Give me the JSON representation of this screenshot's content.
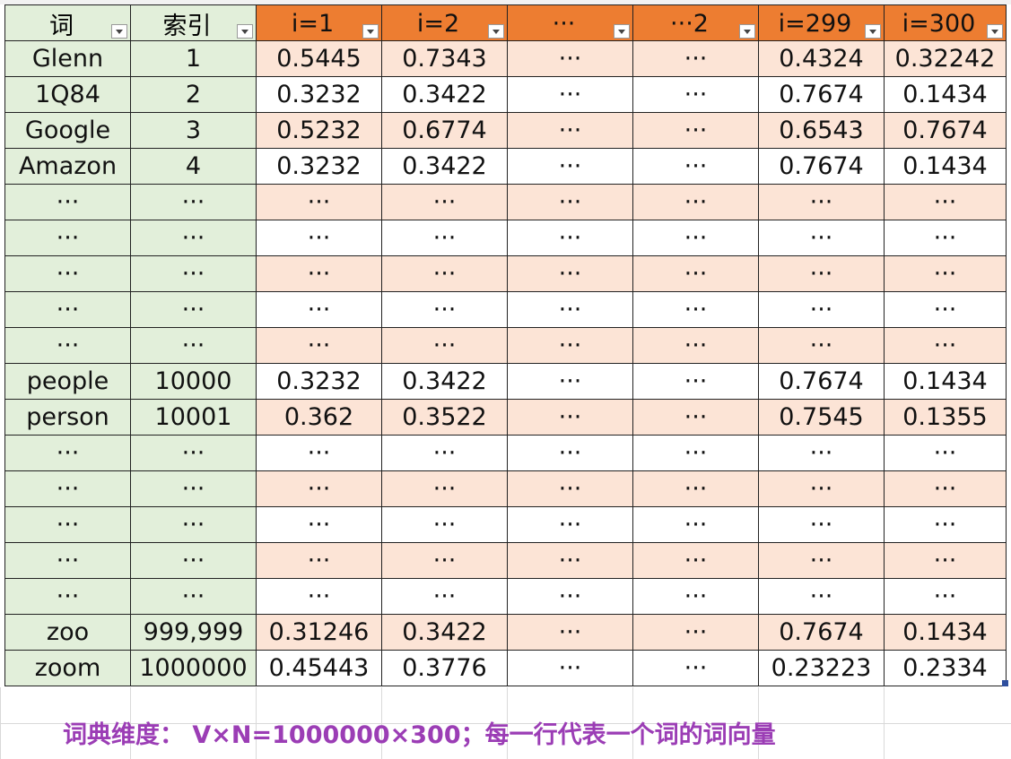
{
  "table": {
    "headers": [
      "词",
      "索引",
      "i=1",
      "i=2",
      "···",
      "···2",
      "i=299",
      "i=300"
    ],
    "rows": [
      [
        "Glenn",
        "1",
        "0.5445",
        "0.7343",
        "···",
        "···",
        "0.4324",
        "0.32242"
      ],
      [
        "1Q84",
        "2",
        "0.3232",
        "0.3422",
        "···",
        "···",
        "0.7674",
        "0.1434"
      ],
      [
        "Google",
        "3",
        "0.5232",
        "0.6774",
        "···",
        "···",
        "0.6543",
        "0.7674"
      ],
      [
        "Amazon",
        "4",
        "0.3232",
        "0.3422",
        "···",
        "···",
        "0.7674",
        "0.1434"
      ],
      [
        "···",
        "···",
        "···",
        "···",
        "···",
        "···",
        "···",
        "···"
      ],
      [
        "···",
        "···",
        "···",
        "···",
        "···",
        "···",
        "···",
        "···"
      ],
      [
        "···",
        "···",
        "···",
        "···",
        "···",
        "···",
        "···",
        "···"
      ],
      [
        "···",
        "···",
        "···",
        "···",
        "···",
        "···",
        "···",
        "···"
      ],
      [
        "···",
        "···",
        "···",
        "···",
        "···",
        "···",
        "···",
        "···"
      ],
      [
        "people",
        "10000",
        "0.3232",
        "0.3422",
        "···",
        "···",
        "0.7674",
        "0.1434"
      ],
      [
        "person",
        "10001",
        "0.362",
        "0.3522",
        "···",
        "···",
        "0.7545",
        "0.1355"
      ],
      [
        "···",
        "···",
        "···",
        "···",
        "···",
        "···",
        "···",
        "···"
      ],
      [
        "···",
        "···",
        "···",
        "···",
        "···",
        "···",
        "···",
        "···"
      ],
      [
        "···",
        "···",
        "···",
        "···",
        "···",
        "···",
        "···",
        "···"
      ],
      [
        "···",
        "···",
        "···",
        "···",
        "···",
        "···",
        "···",
        "···"
      ],
      [
        "···",
        "···",
        "···",
        "···",
        "···",
        "···",
        "···",
        "···"
      ],
      [
        "zoo",
        "999,999",
        "0.31246",
        "0.3422",
        "···",
        "···",
        "0.7674",
        "0.1434"
      ],
      [
        "zoom",
        "1000000",
        "0.45443",
        "0.3776",
        "···",
        "···",
        "0.23223",
        "0.2334"
      ]
    ]
  },
  "caption": "词典维度： V×N=1000000×300；每一行代表一个词的词向量",
  "colors": {
    "header_accent": "#ed7d31",
    "left_columns_fill": "#e2efda",
    "banded_row_fill": "#fce4d6",
    "caption_color": "#9b3db5"
  },
  "icons": {
    "filter": "filter-dropdown-icon"
  }
}
